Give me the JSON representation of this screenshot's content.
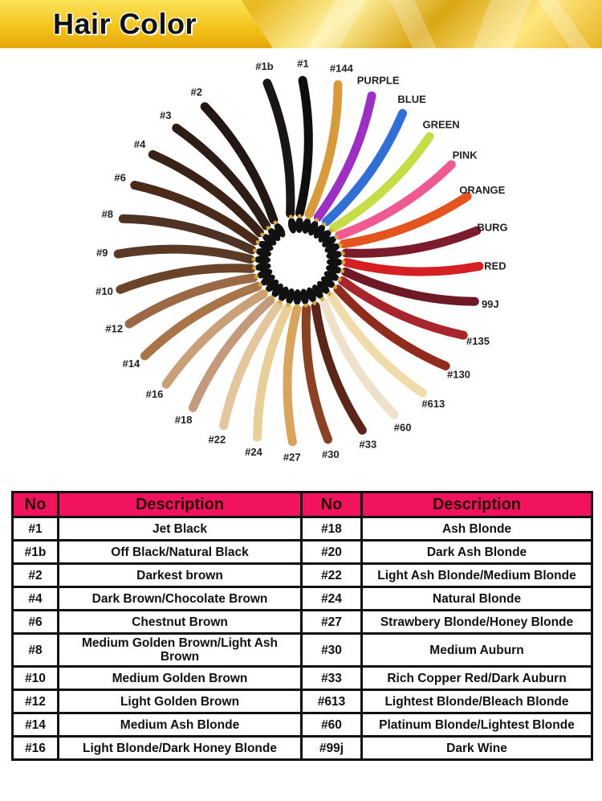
{
  "header": {
    "title": "Hair Color"
  },
  "swatches": [
    {
      "label": "#1b",
      "color": "#1a1616"
    },
    {
      "label": "#1",
      "color": "#0f0d0d"
    },
    {
      "label": "#144",
      "color": "#d79b3b"
    },
    {
      "label": "PURPLE",
      "color": "#9c2fc4"
    },
    {
      "label": "BLUE",
      "color": "#2f6fd6"
    },
    {
      "label": "GREEN",
      "color": "#c7dd48"
    },
    {
      "label": "PINK",
      "color": "#ef5a93"
    },
    {
      "label": "ORANGE",
      "color": "#e4541f"
    },
    {
      "label": "BURG",
      "color": "#7c1b2b"
    },
    {
      "label": "RED",
      "color": "#d51f23"
    },
    {
      "label": "99J",
      "color": "#6e1a26"
    },
    {
      "label": "#135",
      "color": "#a8262b"
    },
    {
      "label": "#130",
      "color": "#8f2c1e"
    },
    {
      "label": "#613",
      "color": "#efdcaa"
    },
    {
      "label": "#60",
      "color": "#efe2cc"
    },
    {
      "label": "#33",
      "color": "#5a2619"
    },
    {
      "label": "#30",
      "color": "#8a4224"
    },
    {
      "label": "#27",
      "color": "#d9a55e"
    },
    {
      "label": "#24",
      "color": "#e7cf97"
    },
    {
      "label": "#22",
      "color": "#e3c69e"
    },
    {
      "label": "#18",
      "color": "#c49a7c"
    },
    {
      "label": "#16",
      "color": "#caa079"
    },
    {
      "label": "#14",
      "color": "#a97548"
    },
    {
      "label": "#12",
      "color": "#9b6946"
    },
    {
      "label": "#10",
      "color": "#6a4429"
    },
    {
      "label": "#9",
      "color": "#5a3a27"
    },
    {
      "label": "#8",
      "color": "#4e3224"
    },
    {
      "label": "#6",
      "color": "#4b2a1a"
    },
    {
      "label": "#4",
      "color": "#3a2218"
    },
    {
      "label": "#3",
      "color": "#2e1c16"
    },
    {
      "label": "#2",
      "color": "#231715"
    }
  ],
  "table": {
    "headers": [
      "No",
      "Description",
      "No",
      "Description"
    ],
    "rows": [
      {
        "no1": "#1",
        "desc1": "Jet Black",
        "no2": "#18",
        "desc2": "Ash Blonde"
      },
      {
        "no1": "#1b",
        "desc1": "Off Black/Natural Black",
        "no2": "#20",
        "desc2": "Dark Ash Blonde"
      },
      {
        "no1": "#2",
        "desc1": "Darkest brown",
        "no2": "#22",
        "desc2": "Light Ash Blonde/Medium Blonde"
      },
      {
        "no1": "#4",
        "desc1": "Dark Brown/Chocolate Brown",
        "no2": "#24",
        "desc2": "Natural Blonde"
      },
      {
        "no1": "#6",
        "desc1": "Chestnut Brown",
        "no2": "#27",
        "desc2": "Strawbery Blonde/Honey Blonde"
      },
      {
        "no1": "#8",
        "desc1": "Medium Golden Brown/Light Ash Brown",
        "no2": "#30",
        "desc2": "Medium Auburn"
      },
      {
        "no1": "#10",
        "desc1": "Medium Golden Brown",
        "no2": "#33",
        "desc2": "Rich Copper Red/Dark Auburn"
      },
      {
        "no1": "#12",
        "desc1": "Light Golden Brown",
        "no2": "#613",
        "desc2": "Lightest Blonde/Bleach Blonde"
      },
      {
        "no1": "#14",
        "desc1": "Medium Ash Blonde",
        "no2": "#60",
        "desc2": "Platinum Blonde/Lightest Blonde"
      },
      {
        "no1": "#16",
        "desc1": "Light Blonde/Dark Honey Blonde",
        "no2": "#99j",
        "desc2": "Dark Wine"
      }
    ]
  },
  "colors": {
    "header_pink": "#f2135f",
    "banner_gold": "#f2c118"
  }
}
